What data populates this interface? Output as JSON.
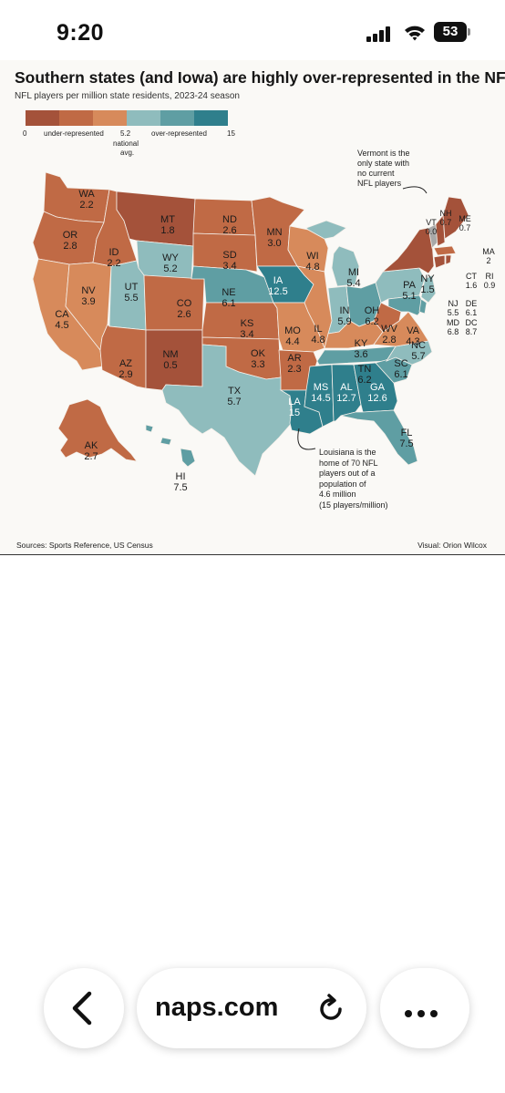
{
  "status_bar": {
    "time": "9:20",
    "battery": "53"
  },
  "infographic": {
    "title": "Southern states (and Iowa) are highly over-represented in the NFL",
    "subtitle": "NFL players per million state residents, 2023-24  season",
    "legend": {
      "colors": [
        "#a4523a",
        "#c06a45",
        "#d78a5b",
        "#8fbcbd",
        "#5f9ea3",
        "#2f7f8c"
      ],
      "min_label": "0",
      "under_label": "under-represented",
      "avg_value": "5.2",
      "avg_label_1": "national",
      "avg_label_2": "avg.",
      "over_label": "over-represented",
      "max_label": "15"
    },
    "annotations": {
      "vermont": [
        "Vermont is the",
        "only state with",
        "no current",
        "NFL players"
      ],
      "louisiana": [
        "Louisiana is the",
        "home of 70 NFL",
        "players out of a",
        "population of",
        "4.6 million",
        "(15 players/million)"
      ]
    },
    "sources": "Sources: Sports Reference, US Census",
    "visual_credit": "Visual: Orion Wilcox"
  },
  "chart_data": {
    "type": "choropleth",
    "title": "Southern states (and Iowa) are highly over-represented in the NFL",
    "subtitle": "NFL players per million state residents, 2023-24  season",
    "scale": {
      "min": 0,
      "national_avg": 5.2,
      "max": 15
    },
    "states": [
      {
        "code": "WA",
        "value": "2.2"
      },
      {
        "code": "OR",
        "value": "2.8"
      },
      {
        "code": "CA",
        "value": "4.5"
      },
      {
        "code": "NV",
        "value": "3.9"
      },
      {
        "code": "ID",
        "value": "2.2"
      },
      {
        "code": "MT",
        "value": "1.8"
      },
      {
        "code": "WY",
        "value": "5.2"
      },
      {
        "code": "UT",
        "value": "5.5"
      },
      {
        "code": "AZ",
        "value": "2.9"
      },
      {
        "code": "CO",
        "value": "2.6"
      },
      {
        "code": "NM",
        "value": "0.5"
      },
      {
        "code": "ND",
        "value": "2.6"
      },
      {
        "code": "SD",
        "value": "3.4"
      },
      {
        "code": "NE",
        "value": "6.1"
      },
      {
        "code": "KS",
        "value": "3.4"
      },
      {
        "code": "OK",
        "value": "3.3"
      },
      {
        "code": "TX",
        "value": "5.7"
      },
      {
        "code": "MN",
        "value": "3.0"
      },
      {
        "code": "IA",
        "value": "12.5"
      },
      {
        "code": "MO",
        "value": "4.4"
      },
      {
        "code": "AR",
        "value": "2.3"
      },
      {
        "code": "LA",
        "value": "15"
      },
      {
        "code": "WI",
        "value": "4.8"
      },
      {
        "code": "IL",
        "value": "4.8"
      },
      {
        "code": "MI",
        "value": "5.4"
      },
      {
        "code": "IN",
        "value": "5.9"
      },
      {
        "code": "OH",
        "value": "6.2"
      },
      {
        "code": "KY",
        "value": "3.6"
      },
      {
        "code": "TN",
        "value": "6.2"
      },
      {
        "code": "MS",
        "value": "14.5"
      },
      {
        "code": "AL",
        "value": "12.7"
      },
      {
        "code": "GA",
        "value": "12.6"
      },
      {
        "code": "FL",
        "value": "7.5"
      },
      {
        "code": "SC",
        "value": "6.1"
      },
      {
        "code": "NC",
        "value": "5.7"
      },
      {
        "code": "VA",
        "value": "4.3"
      },
      {
        "code": "WV",
        "value": "2.8"
      },
      {
        "code": "PA",
        "value": "5.1"
      },
      {
        "code": "NY",
        "value": "1.5"
      },
      {
        "code": "VT",
        "value": "0.0"
      },
      {
        "code": "NH",
        "value": "0.7"
      },
      {
        "code": "ME",
        "value": "0.7"
      },
      {
        "code": "MA",
        "value": "2"
      },
      {
        "code": "CT",
        "value": "1.6"
      },
      {
        "code": "RI",
        "value": "0.9"
      },
      {
        "code": "NJ",
        "value": "5.5"
      },
      {
        "code": "DE",
        "value": "6.1"
      },
      {
        "code": "MD",
        "value": "6.8"
      },
      {
        "code": "DC",
        "value": "8.7"
      },
      {
        "code": "AK",
        "value": "2.7"
      },
      {
        "code": "HI",
        "value": "7.5"
      }
    ]
  },
  "browser_toolbar": {
    "url": "naps.com"
  }
}
